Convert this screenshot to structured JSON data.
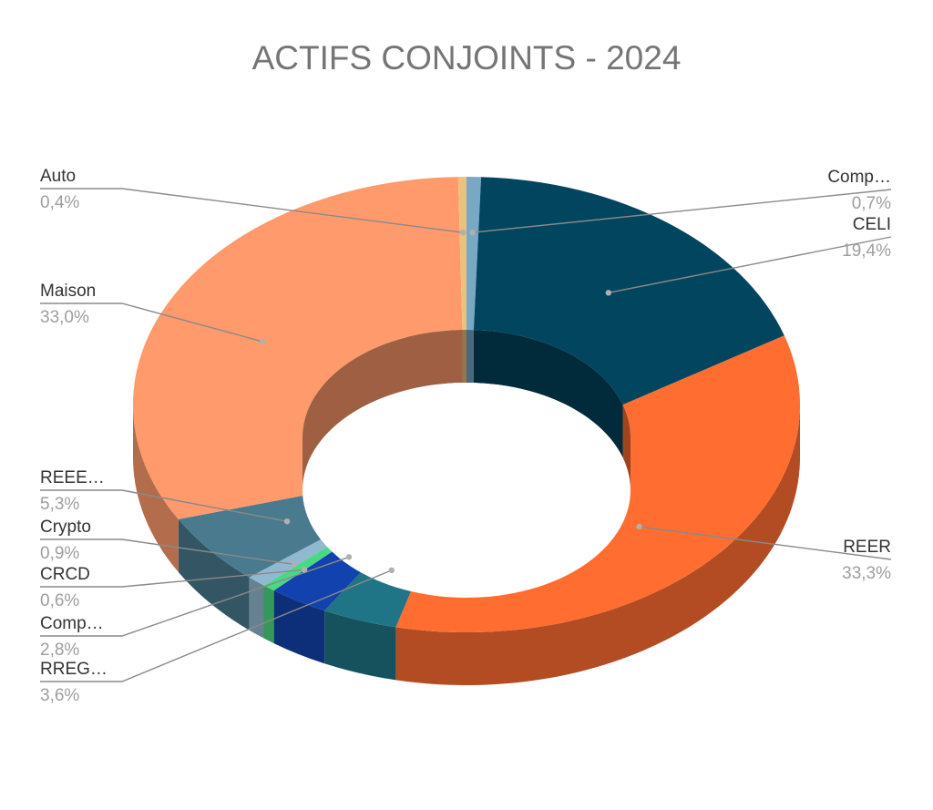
{
  "chart_data": {
    "type": "pie",
    "variant": "3d-donut",
    "title": "ACTIFS CONJOINTS - 2024",
    "legend": "none",
    "slices": [
      {
        "name": "Comp…",
        "label": "0,7%",
        "value": 0.7,
        "color": "#78a8c4",
        "side": "right"
      },
      {
        "name": "CELI",
        "label": "19,4%",
        "value": 19.4,
        "color": "#02455f",
        "side": "right"
      },
      {
        "name": "REER",
        "label": "33,3%",
        "value": 33.3,
        "color": "#ff6d31",
        "side": "right"
      },
      {
        "name": "RREG…",
        "label": "3,6%",
        "value": 3.6,
        "color": "#1f7585",
        "side": "left"
      },
      {
        "name": "Comp…",
        "label": "2,8%",
        "value": 2.8,
        "color": "#1242ad",
        "side": "left"
      },
      {
        "name": "CRCD",
        "label": "0,6%",
        "value": 0.6,
        "color": "#4ad884",
        "side": "left"
      },
      {
        "name": "Crypto",
        "label": "0,9%",
        "value": 0.9,
        "color": "#91b8d1",
        "side": "left"
      },
      {
        "name": "REEE…",
        "label": "5,3%",
        "value": 5.3,
        "color": "#4a7a8e",
        "side": "left"
      },
      {
        "name": "Maison",
        "label": "33,0%",
        "value": 33.0,
        "color": "#ff9a6c",
        "side": "left"
      },
      {
        "name": "Auto",
        "label": "0,4%",
        "value": 0.4,
        "color": "#e9c27e",
        "side": "left"
      }
    ]
  }
}
